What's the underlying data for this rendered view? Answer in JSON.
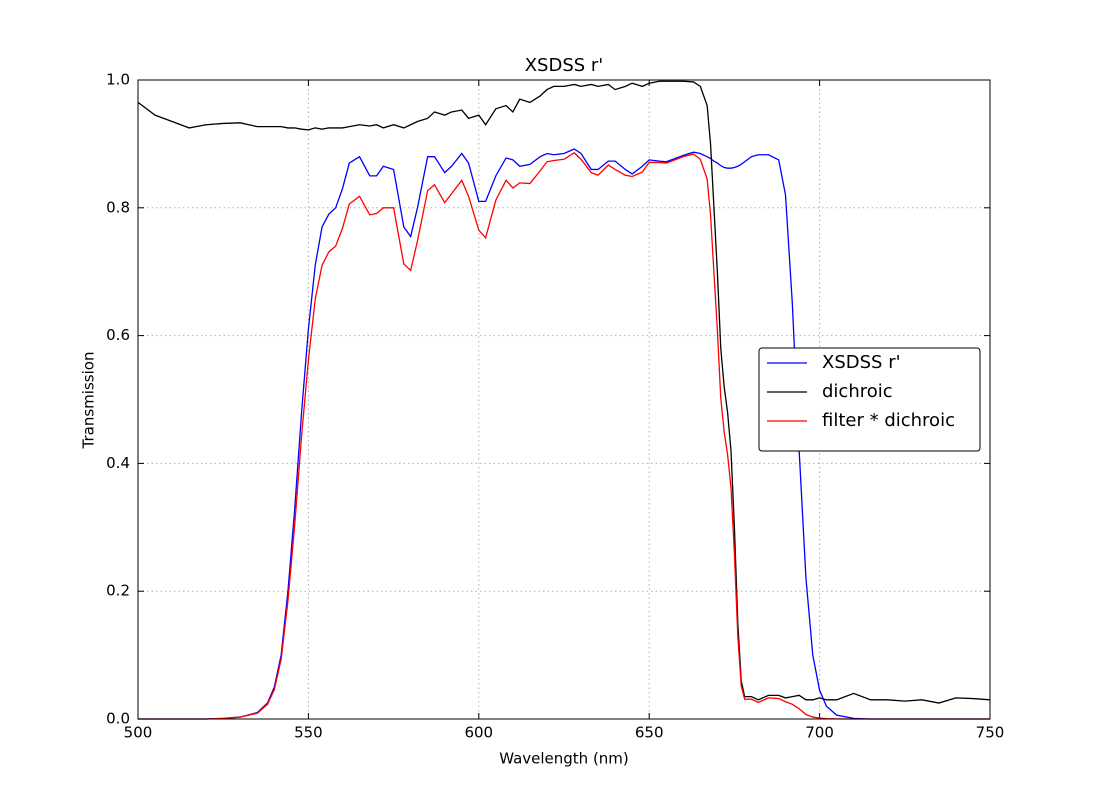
{
  "chart_data": {
    "type": "line",
    "title": "XSDSS r'",
    "x_label": "Wavelength (nm)",
    "y_label": "Transmission",
    "x": [
      500,
      505,
      510,
      515,
      520,
      525,
      530,
      535,
      538,
      540,
      542,
      544,
      546,
      548,
      550,
      552,
      554,
      556,
      558,
      560,
      562,
      565,
      568,
      570,
      572,
      575,
      578,
      580,
      582,
      585,
      587,
      590,
      592,
      595,
      597,
      600,
      602,
      605,
      608,
      610,
      612,
      615,
      618,
      620,
      622,
      625,
      628,
      630,
      633,
      635,
      638,
      640,
      643,
      645,
      648,
      650,
      653,
      655,
      658,
      660,
      663,
      665,
      667,
      668,
      669,
      670,
      671,
      672,
      673,
      674,
      675,
      676,
      677,
      678,
      680,
      682,
      685,
      688,
      690,
      692,
      694,
      696,
      698,
      700,
      702,
      705,
      710,
      715,
      720,
      725,
      730,
      735,
      740,
      745,
      750
    ],
    "series": [
      {
        "name": "XSDSS r'",
        "color": "#0000ff",
        "values": [
          0,
          0,
          0,
          0,
          0,
          0.001,
          0.003,
          0.01,
          0.025,
          0.05,
          0.1,
          0.2,
          0.33,
          0.48,
          0.61,
          0.71,
          0.77,
          0.79,
          0.8,
          0.83,
          0.87,
          0.88,
          0.85,
          0.85,
          0.865,
          0.86,
          0.77,
          0.755,
          0.8,
          0.88,
          0.88,
          0.855,
          0.865,
          0.885,
          0.87,
          0.81,
          0.81,
          0.85,
          0.878,
          0.875,
          0.865,
          0.868,
          0.88,
          0.885,
          0.883,
          0.885,
          0.892,
          0.885,
          0.86,
          0.86,
          0.873,
          0.873,
          0.86,
          0.853,
          0.865,
          0.875,
          0.873,
          0.872,
          0.878,
          0.882,
          0.887,
          0.885,
          0.88,
          0.877,
          0.873,
          0.87,
          0.866,
          0.863,
          0.862,
          0.862,
          0.863,
          0.865,
          0.868,
          0.872,
          0.88,
          0.883,
          0.883,
          0.875,
          0.82,
          0.65,
          0.42,
          0.22,
          0.1,
          0.045,
          0.02,
          0.006,
          0.001,
          0,
          0,
          0,
          0,
          0,
          0,
          0,
          0
        ]
      },
      {
        "name": "dichroic",
        "color": "#000000",
        "values": [
          0.965,
          0.945,
          0.935,
          0.925,
          0.93,
          0.932,
          0.933,
          0.927,
          0.927,
          0.927,
          0.927,
          0.925,
          0.925,
          0.923,
          0.922,
          0.925,
          0.923,
          0.925,
          0.925,
          0.925,
          0.927,
          0.93,
          0.928,
          0.93,
          0.925,
          0.93,
          0.925,
          0.93,
          0.935,
          0.94,
          0.95,
          0.945,
          0.95,
          0.953,
          0.94,
          0.945,
          0.93,
          0.955,
          0.96,
          0.95,
          0.97,
          0.965,
          0.975,
          0.985,
          0.99,
          0.99,
          0.993,
          0.99,
          0.993,
          0.99,
          0.993,
          0.985,
          0.99,
          0.995,
          0.99,
          0.995,
          0.998,
          0.998,
          0.998,
          0.998,
          0.997,
          0.99,
          0.96,
          0.9,
          0.8,
          0.7,
          0.58,
          0.52,
          0.48,
          0.42,
          0.3,
          0.15,
          0.06,
          0.035,
          0.035,
          0.03,
          0.037,
          0.037,
          0.033,
          0.035,
          0.037,
          0.03,
          0.03,
          0.033,
          0.03,
          0.03,
          0.04,
          0.03,
          0.03,
          0.028,
          0.03,
          0.025,
          0.033,
          0.032,
          0.03
        ]
      },
      {
        "name": "filter * dichroic",
        "color": "#ff0000",
        "values": [
          0,
          0,
          0,
          0,
          0,
          0.001,
          0.003,
          0.009,
          0.023,
          0.046,
          0.093,
          0.185,
          0.305,
          0.443,
          0.562,
          0.657,
          0.71,
          0.731,
          0.74,
          0.768,
          0.806,
          0.818,
          0.789,
          0.791,
          0.8,
          0.8,
          0.712,
          0.702,
          0.748,
          0.827,
          0.836,
          0.808,
          0.822,
          0.843,
          0.818,
          0.765,
          0.753,
          0.812,
          0.843,
          0.831,
          0.839,
          0.838,
          0.858,
          0.872,
          0.874,
          0.876,
          0.886,
          0.876,
          0.855,
          0.851,
          0.867,
          0.86,
          0.851,
          0.849,
          0.856,
          0.871,
          0.871,
          0.87,
          0.876,
          0.88,
          0.884,
          0.876,
          0.845,
          0.789,
          0.698,
          0.609,
          0.502,
          0.449,
          0.414,
          0.362,
          0.259,
          0.13,
          0.052,
          0.031,
          0.031,
          0.026,
          0.033,
          0.032,
          0.027,
          0.023,
          0.016,
          0.007,
          0.003,
          0.0015,
          0.0006,
          0.0002,
          0,
          0,
          0,
          0,
          0,
          0,
          0,
          0,
          0
        ]
      }
    ],
    "xlim": [
      500,
      750
    ],
    "xticks": [
      500,
      550,
      600,
      650,
      700,
      750
    ],
    "ylim": [
      0,
      1
    ],
    "yticks": [
      {
        "value": 0,
        "label": "0.0"
      },
      0.2,
      0.4,
      0.6,
      0.8,
      {
        "value": 1,
        "label": "1.0"
      }
    ],
    "grid": true,
    "legend": "center right"
  }
}
